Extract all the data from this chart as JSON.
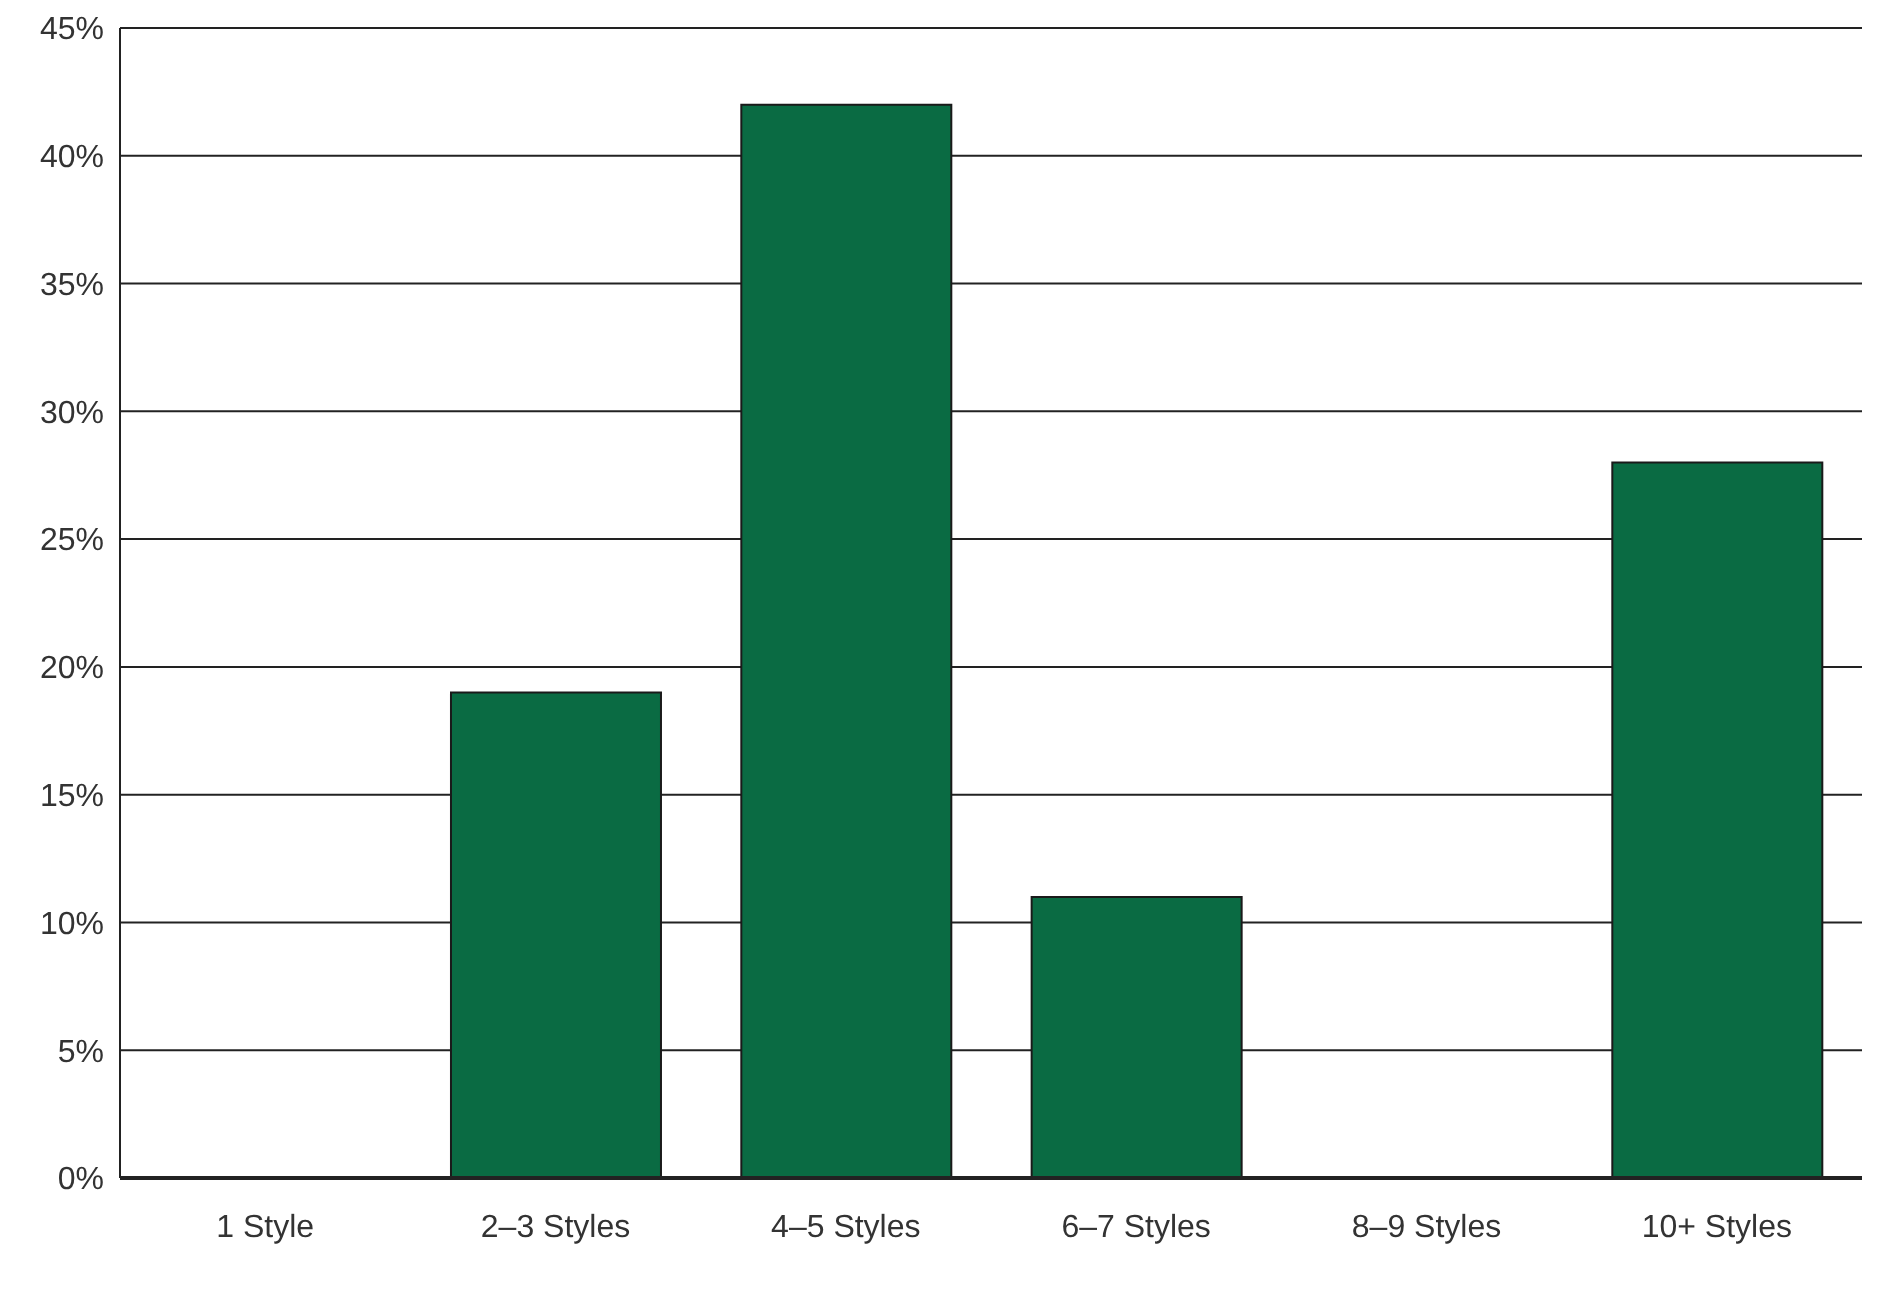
{
  "chart_data": {
    "type": "bar",
    "categories": [
      "1 Style",
      "2–3 Styles",
      "4–5 Styles",
      "6–7 Styles",
      "8–9 Styles",
      "10+ Styles"
    ],
    "values": [
      0,
      19,
      42,
      11,
      0,
      28
    ],
    "color": "#0a6b43",
    "ylim": [
      0,
      45
    ],
    "yticks": [
      {
        "value": 0,
        "label": "0%"
      },
      {
        "value": 5,
        "label": "5%"
      },
      {
        "value": 10,
        "label": "10%"
      },
      {
        "value": 15,
        "label": "15%"
      },
      {
        "value": 20,
        "label": "20%"
      },
      {
        "value": 25,
        "label": "25%"
      },
      {
        "value": 30,
        "label": "30%"
      },
      {
        "value": 35,
        "label": "35%"
      },
      {
        "value": 40,
        "label": "40%"
      },
      {
        "value": 45,
        "label": "45%"
      }
    ],
    "grid": "y"
  }
}
